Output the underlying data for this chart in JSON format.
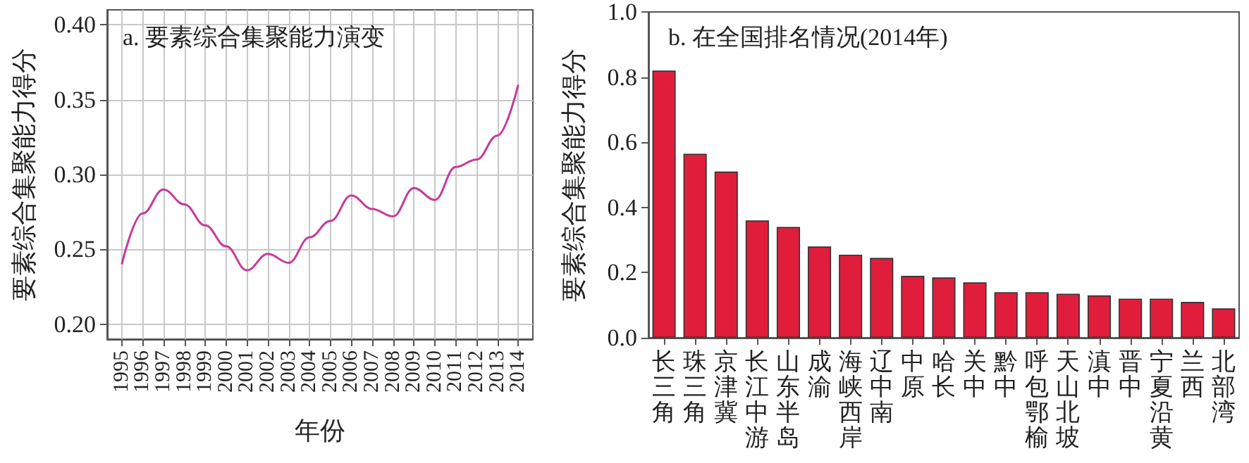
{
  "chart_data": [
    {
      "type": "line",
      "title": "a. 要素综合集聚能力演变",
      "xlabel": "年份",
      "ylabel": "要素综合集聚能力得分",
      "x": [
        1995,
        1996,
        1997,
        1998,
        1999,
        2000,
        2001,
        2002,
        2003,
        2004,
        2005,
        2006,
        2007,
        2008,
        2009,
        2010,
        2011,
        2012,
        2013,
        2014
      ],
      "series": [
        {
          "color": "#c8399a",
          "values": [
            0.24,
            0.274,
            0.29,
            0.28,
            0.266,
            0.252,
            0.236,
            0.247,
            0.241,
            0.258,
            0.269,
            0.286,
            0.277,
            0.272,
            0.291,
            0.283,
            0.305,
            0.31,
            0.326,
            0.36
          ]
        }
      ],
      "xlim": [
        1994.3,
        2014.7
      ],
      "xticks": [
        1995,
        1996,
        1997,
        1998,
        1999,
        2000,
        2001,
        2002,
        2003,
        2004,
        2005,
        2006,
        2007,
        2008,
        2009,
        2010,
        2011,
        2012,
        2013,
        2014
      ],
      "ylim": [
        0.19,
        0.41
      ],
      "yticks": [
        {
          "value": 0.2,
          "label": "0.20"
        },
        {
          "value": 0.25,
          "label": "0.25"
        },
        {
          "value": 0.3,
          "label": "0.30"
        },
        {
          "value": 0.35,
          "label": "0.35"
        },
        {
          "value": 0.4,
          "label": "0.40"
        }
      ],
      "grid": true,
      "marker": "none",
      "line_style": "solid"
    },
    {
      "type": "bar",
      "title": "b. 在全国排名情况(2014年)",
      "ylabel": "要素综合集聚能力得分",
      "categories": [
        "长三角",
        "珠三角",
        "京津冀",
        "长江中游",
        "山东半岛",
        "成渝",
        "海峡西岸",
        "辽中南",
        "中原",
        "哈长",
        "关中",
        "黔中",
        "呼包鄂榆",
        "天山北坡",
        "滇中",
        "晋中",
        "宁夏沿黄",
        "兰西",
        "北部湾"
      ],
      "series": [
        {
          "color": "#e01e3c",
          "values": [
            0.82,
            0.565,
            0.51,
            0.36,
            0.34,
            0.28,
            0.255,
            0.245,
            0.19,
            0.185,
            0.17,
            0.14,
            0.14,
            0.135,
            0.13,
            0.12,
            0.12,
            0.11,
            0.09
          ]
        }
      ],
      "ylim": [
        0,
        1.0
      ],
      "yticks": [
        {
          "value": 0,
          "label": "0.0"
        },
        {
          "value": 0.2,
          "label": "0.2"
        },
        {
          "value": 0.4,
          "label": "0.4"
        },
        {
          "value": 0.6,
          "label": "0.6"
        },
        {
          "value": 0.8,
          "label": "0.8"
        },
        {
          "value": 1.0,
          "label": "1.0"
        }
      ],
      "grid": false
    }
  ]
}
